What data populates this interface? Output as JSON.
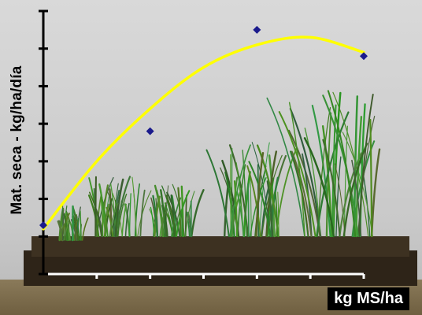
{
  "chart_data": {
    "type": "scatter",
    "title": "",
    "xlabel": "kg MS/ha",
    "ylabel": "Mat. seca - kg/ha/día",
    "x_ticks": 6,
    "y_ticks": 7,
    "xlim": [
      0,
      6
    ],
    "ylim": [
      0,
      7
    ],
    "series": [
      {
        "marker": "diamond",
        "color": "#1a1a8c",
        "x": [
          0,
          2,
          4,
          6
        ],
        "y": [
          1.3,
          3.8,
          6.5,
          5.8
        ]
      }
    ],
    "trendline": {
      "type": "polynomial",
      "color": "#ffff00",
      "x": [
        0,
        1,
        2,
        3,
        4,
        5,
        6
      ],
      "y": [
        1.2,
        3.0,
        4.4,
        5.5,
        6.1,
        6.3,
        5.9
      ]
    },
    "axis_color": "#000000",
    "legend": "none",
    "grid": false
  }
}
